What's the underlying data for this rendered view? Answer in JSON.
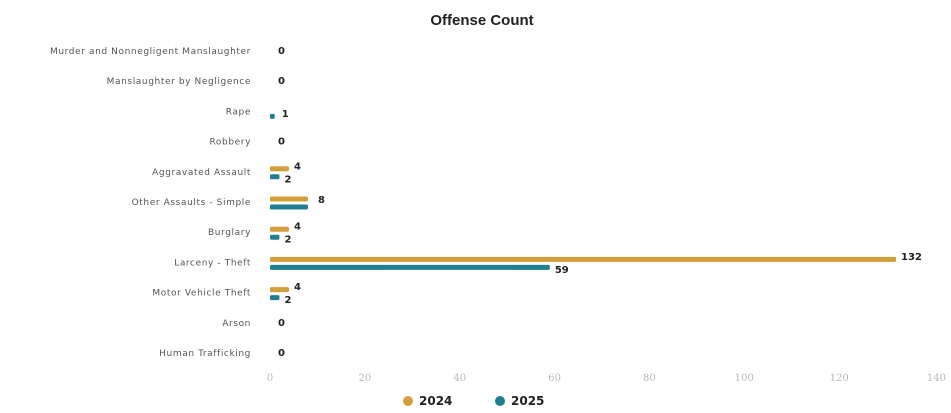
{
  "chart_data": {
    "type": "bar",
    "orientation": "horizontal",
    "title": "Offense Count",
    "categories": [
      "Murder and Nonnegligent Manslaughter",
      "Manslaughter by Negligence",
      "Rape",
      "Robbery",
      "Aggravated Assault",
      "Other Assaults - Simple",
      "Burglary",
      "Larceny - Theft",
      "Motor Vehicle Theft",
      "Arson",
      "Human Trafficking"
    ],
    "series": [
      {
        "name": "2024",
        "color": "#d49e3a",
        "values": [
          0,
          0,
          0,
          0,
          4,
          8,
          4,
          132,
          4,
          0,
          0
        ]
      },
      {
        "name": "2025",
        "color": "#1f7f92",
        "values": [
          0,
          0,
          1,
          0,
          2,
          8,
          2,
          59,
          2,
          0,
          0
        ]
      }
    ],
    "value_labels": [
      "0",
      "0",
      "1",
      "0",
      "4",
      "2",
      "8",
      "4",
      "2",
      "132",
      "59",
      "4",
      "2",
      "0",
      "0"
    ],
    "xlim": [
      0,
      140
    ],
    "x_ticks": [
      "0",
      "20",
      "40",
      "60",
      "80",
      "100",
      "120",
      "140"
    ],
    "xlabel": "",
    "ylabel": "",
    "grid": false,
    "legend_position": "bottom-center"
  }
}
